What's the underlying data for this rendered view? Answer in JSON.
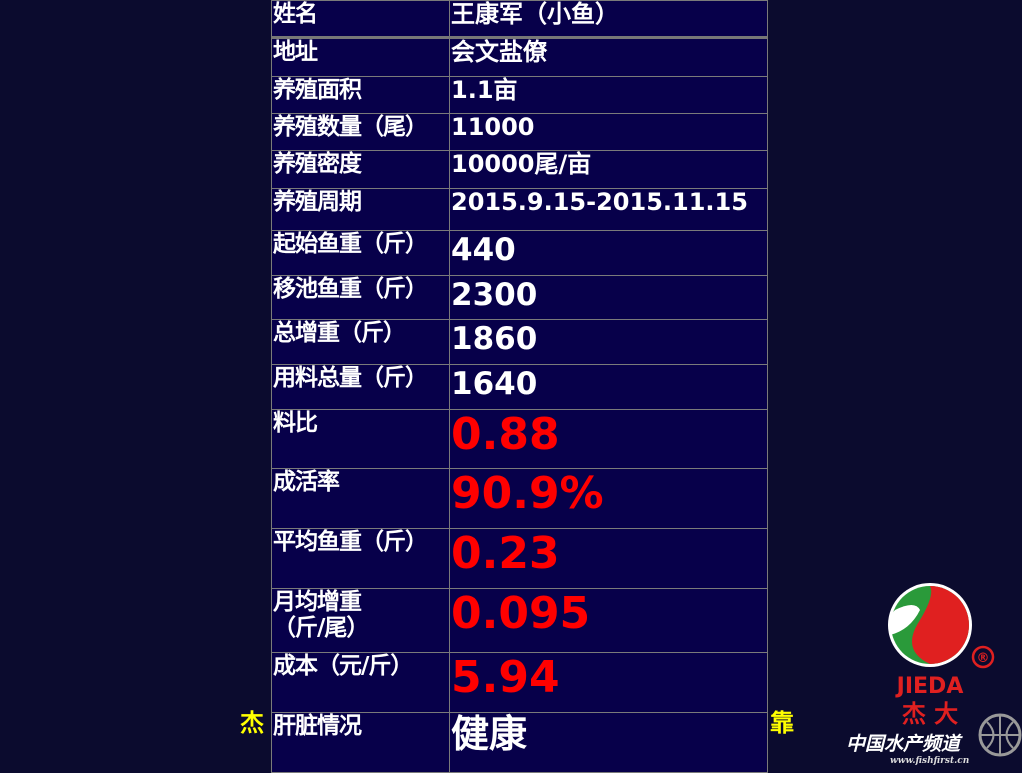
{
  "background_text": {
    "left_fragment": "杰",
    "right_fragment": "靠"
  },
  "rows": [
    {
      "label": "姓名",
      "value": "王康军（小鱼）"
    },
    {
      "label": "地址",
      "value": "会文盐僚"
    },
    {
      "label": "养殖面积",
      "value": "1.1亩"
    },
    {
      "label": "养殖数量（尾）",
      "value": "11000"
    },
    {
      "label": "养殖密度",
      "value": "10000尾/亩"
    },
    {
      "label": "养殖周期",
      "value": "2015.9.15-2015.11.15"
    },
    {
      "label": "起始鱼重（斤）",
      "value": "440"
    },
    {
      "label": "移池鱼重（斤）",
      "value": "2300"
    },
    {
      "label": "总增重（斤）",
      "value": "1860"
    },
    {
      "label": "用料总量（斤）",
      "value": "1640"
    },
    {
      "label": "料比",
      "value": "0.88"
    },
    {
      "label": "成活率",
      "value": "90.9%"
    },
    {
      "label": "平均鱼重（斤）",
      "value": "0.23"
    },
    {
      "label": "月均增重",
      "label2": "（斤/尾）",
      "value": "0.095"
    },
    {
      "label": "成本（元/斤）",
      "value": "5.94"
    },
    {
      "label": "肝脏情况",
      "value": "健康"
    }
  ],
  "logo": {
    "brand_en": "JIEDA",
    "brand_cn": "杰 大",
    "registered": "®",
    "watermark": "中国水产频道",
    "watermark_url": "www.fishfirst.cn"
  },
  "colors": {
    "table_bg": "#07004a",
    "highlight": "#ff0000",
    "background": "#0b0b2e",
    "bg_text": "#ffff00"
  }
}
